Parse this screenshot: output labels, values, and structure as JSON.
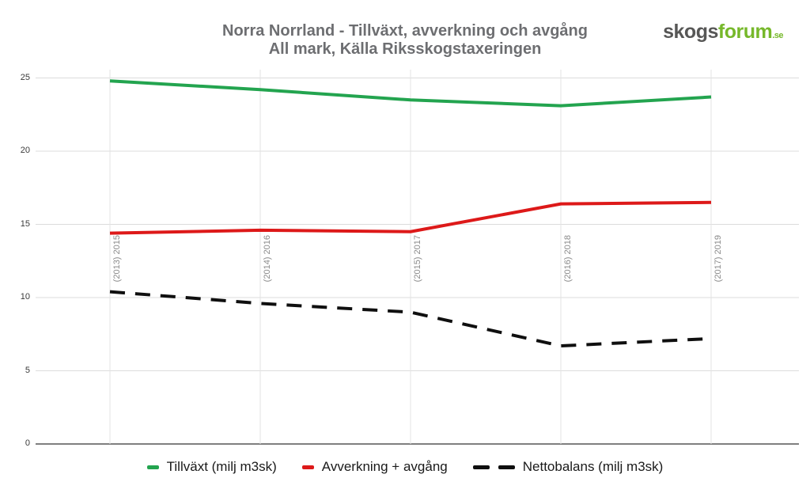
{
  "header": {
    "title_line1": "Norra Norrland - Tillväxt, avverkning och avgång",
    "title_line2": "All mark, Källa Riksskogstaxeringen",
    "title_color": "#6d6e71"
  },
  "logo": {
    "part1": "skogs",
    "part2": "forum",
    "suffix": ".se",
    "part1_color": "#575756",
    "part2_color": "#76b82a"
  },
  "chart_data": {
    "type": "line",
    "title": "Norra Norrland - Tillväxt, avverkning och avgång",
    "subtitle": "All mark, Källa Riksskogstaxeringen",
    "categories": [
      "(2013) 2015",
      "(2014) 2016",
      "(2015) 2017",
      "(2016) 2018",
      "(2017) 2019"
    ],
    "series": [
      {
        "name": "Tillväxt (milj m3sk)",
        "color": "#23a44f",
        "dash": "solid",
        "values": [
          24.8,
          24.2,
          23.5,
          23.1,
          23.7
        ]
      },
      {
        "name": "Avverkning + avgång",
        "color": "#dd1919",
        "dash": "solid",
        "values": [
          14.4,
          14.6,
          14.5,
          16.4,
          16.5
        ]
      },
      {
        "name": "Nettobalans (milj m3sk)",
        "color": "#0f0f0f",
        "dash": "dashed",
        "values": [
          10.4,
          9.6,
          9.0,
          6.7,
          7.2
        ]
      }
    ],
    "xlabel": "",
    "ylabel": "",
    "ylim": [
      0,
      25
    ],
    "yticks": [
      0,
      5,
      10,
      15,
      20,
      25
    ],
    "grid": true,
    "legend_position": "bottom",
    "colors": {
      "gridline": "#dcdcdc",
      "vertical_gridline": "#e3e3e3",
      "zero_axis": "#7f7f7f",
      "tick_label": "#3a3a3a",
      "category_label": "#8a8a8a"
    }
  }
}
